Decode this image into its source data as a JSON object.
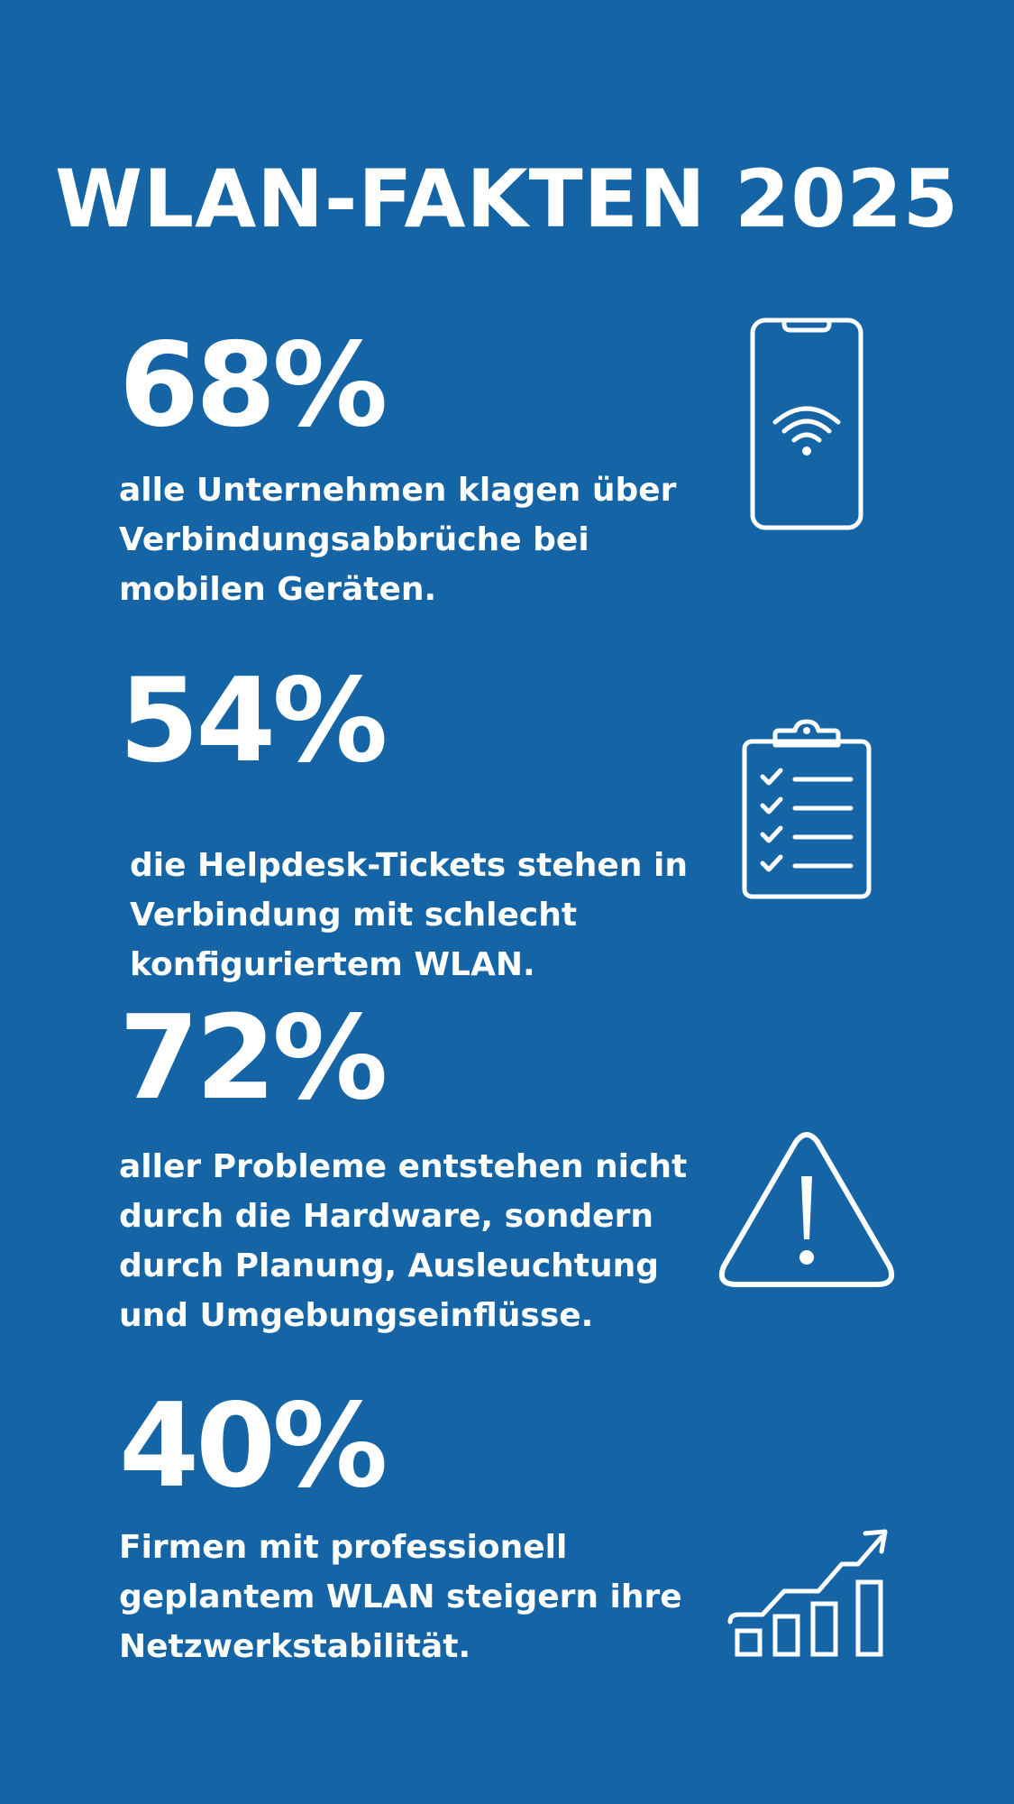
{
  "header": {
    "title": "WLAN-FAKTEN 2025"
  },
  "facts": [
    {
      "percent": "68%",
      "lines": [
        "alle Unternehmen klagen über",
        "Verbindungsabbrüche bei",
        "mobilen Geräten."
      ],
      "icon": "smartphone-wifi-icon"
    },
    {
      "percent": "54%",
      "lines": [
        "die Helpdesk-Tickets stehen in",
        "Verbindung mit schlecht",
        "konfiguriertem WLAN."
      ],
      "icon": "clipboard-checklist-icon"
    },
    {
      "percent": "72%",
      "lines": [
        "aller Probleme entstehen nicht",
        "durch die Hardware, sondern",
        "durch Planung, Ausleuchtung",
        "und Umgebungseinflüsse."
      ],
      "icon": "warning-icon"
    },
    {
      "percent": "40%",
      "lines": [
        "Firmen mit professionell",
        "geplantem WLAN steigern ihre",
        "Netzwerkstabilität."
      ],
      "icon": "growth-chart-icon"
    }
  ],
  "colors": {
    "background": "#1565a6",
    "foreground": "#ffffff"
  }
}
